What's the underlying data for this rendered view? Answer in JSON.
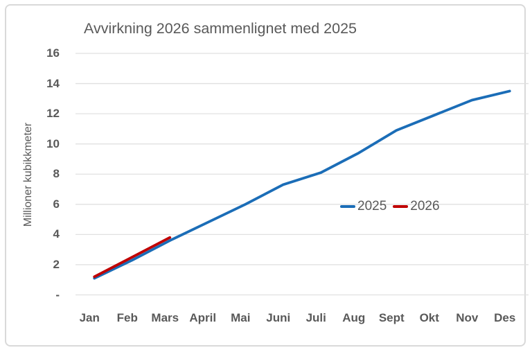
{
  "chart": {
    "title": "Avvirkning 2026 sammenlignet med 2025",
    "ylabel": "Millioner kubikkmeter"
  },
  "chart_data": {
    "type": "line",
    "title": "Avvirkning 2026 sammenlignet med 2025",
    "xlabel": "",
    "ylabel": "Millioner kubikkmeter",
    "categories": [
      "Jan",
      "Feb",
      "Mars",
      "April",
      "Mai",
      "Juni",
      "Juli",
      "Aug",
      "Sept",
      "Okt",
      "Nov",
      "Des"
    ],
    "series": [
      {
        "name": "2025",
        "color": "#1B6DB7",
        "values": [
          1.1,
          2.3,
          3.6,
          4.8,
          6.0,
          7.3,
          8.1,
          9.4,
          10.9,
          11.9,
          12.9,
          13.5
        ]
      },
      {
        "name": "2026",
        "color": "#C00000",
        "values": [
          1.2,
          2.5,
          3.8,
          null,
          null,
          null,
          null,
          null,
          null,
          null,
          null,
          null
        ]
      }
    ],
    "ylim": [
      0,
      16
    ],
    "yticks": [
      0,
      2,
      4,
      6,
      8,
      10,
      12,
      14,
      16
    ],
    "ytick_labels": [
      "-",
      "2",
      "4",
      "6",
      "8",
      "10",
      "12",
      "14",
      "16"
    ],
    "grid": "horizontal",
    "legend_position": "inside-middle-right"
  },
  "colors": {
    "text": "#595959",
    "gridline": "#E0E0E0",
    "frame_border": "#D9D9D9",
    "background": "#FFFFFF",
    "series_2025": "#1B6DB7",
    "series_2026": "#C00000"
  }
}
